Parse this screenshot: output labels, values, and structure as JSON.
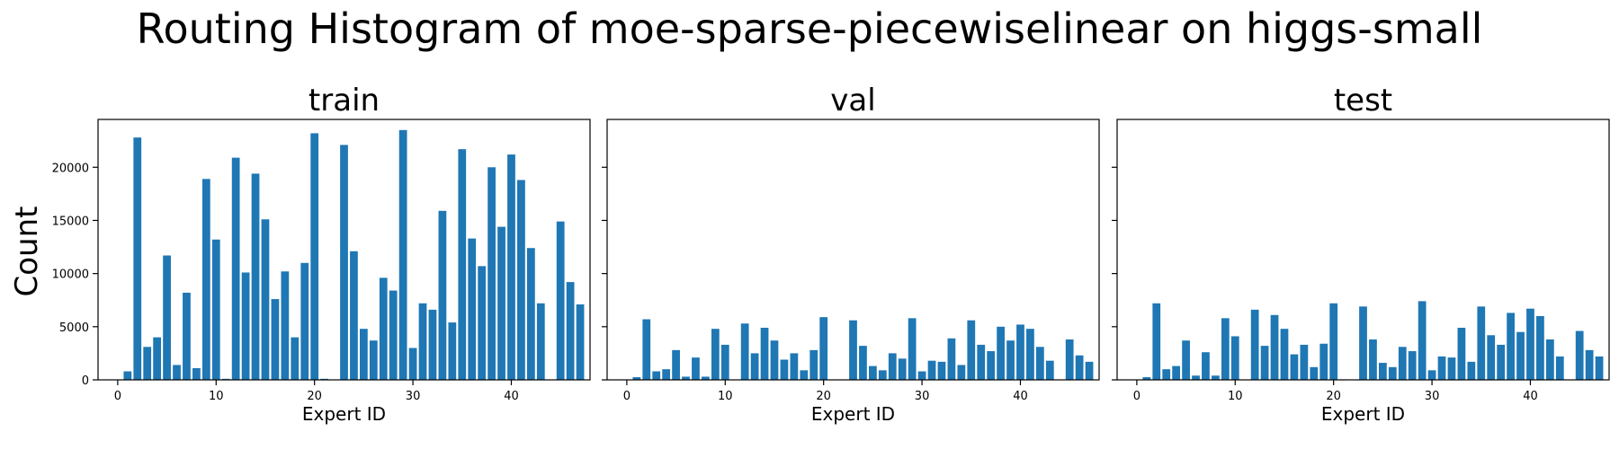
{
  "figure": {
    "title": "Routing Histogram of moe-sparse-piecewiselinear on higgs-small",
    "ylabel": "Count",
    "bar_color": "#1f77b4"
  },
  "chart_data": [
    {
      "type": "bar",
      "title": "train",
      "xlabel": "Expert ID",
      "ylabel": "Count",
      "xlim": [
        -2,
        48
      ],
      "ylim": [
        0,
        24500
      ],
      "xticks": [
        0,
        10,
        20,
        30,
        40
      ],
      "yticks": [
        0,
        5000,
        10000,
        15000,
        20000
      ],
      "ytick_labels": [
        "0",
        "5000",
        "10000",
        "15000",
        "20000"
      ],
      "categories": [
        0,
        1,
        2,
        3,
        4,
        5,
        6,
        7,
        8,
        9,
        10,
        11,
        12,
        13,
        14,
        15,
        16,
        17,
        18,
        19,
        20,
        21,
        22,
        23,
        24,
        25,
        26,
        27,
        28,
        29,
        30,
        31,
        32,
        33,
        34,
        35,
        36,
        37,
        38,
        39,
        40,
        41,
        42,
        43,
        44,
        45,
        46,
        47
      ],
      "values": [
        0,
        800,
        22800,
        3100,
        4000,
        11700,
        1400,
        8200,
        1100,
        18900,
        13200,
        100,
        20900,
        10100,
        19400,
        15100,
        7600,
        10200,
        4000,
        11000,
        23200,
        100,
        0,
        22100,
        12100,
        4800,
        3700,
        9600,
        8400,
        23500,
        3000,
        7200,
        6600,
        15900,
        5400,
        21700,
        13300,
        10700,
        20000,
        14400,
        21200,
        18800,
        12400,
        7200,
        0,
        14900,
        9200,
        7100
      ]
    },
    {
      "type": "bar",
      "title": "val",
      "xlabel": "Expert ID",
      "ylabel": "",
      "xlim": [
        -2,
        48
      ],
      "ylim": [
        0,
        24500
      ],
      "xticks": [
        0,
        10,
        20,
        30,
        40
      ],
      "yticks": [
        0,
        5000,
        10000,
        15000,
        20000
      ],
      "ytick_labels": [],
      "categories": [
        0,
        1,
        2,
        3,
        4,
        5,
        6,
        7,
        8,
        9,
        10,
        11,
        12,
        13,
        14,
        15,
        16,
        17,
        18,
        19,
        20,
        21,
        22,
        23,
        24,
        25,
        26,
        27,
        28,
        29,
        30,
        31,
        32,
        33,
        34,
        35,
        36,
        37,
        38,
        39,
        40,
        41,
        42,
        43,
        44,
        45,
        46,
        47
      ],
      "values": [
        0,
        250,
        5700,
        800,
        1000,
        2800,
        300,
        2100,
        300,
        4800,
        3300,
        0,
        5300,
        2500,
        4900,
        3700,
        1900,
        2500,
        900,
        2800,
        5900,
        0,
        0,
        5600,
        3200,
        1300,
        900,
        2500,
        2000,
        5800,
        800,
        1800,
        1700,
        3900,
        1400,
        5600,
        3300,
        2700,
        5000,
        3700,
        5200,
        4800,
        3100,
        1800,
        0,
        3800,
        2300,
        1700
      ]
    },
    {
      "type": "bar",
      "title": "test",
      "xlabel": "Expert ID",
      "ylabel": "",
      "xlim": [
        -2,
        48
      ],
      "ylim": [
        0,
        24500
      ],
      "xticks": [
        0,
        10,
        20,
        30,
        40
      ],
      "yticks": [
        0,
        5000,
        10000,
        15000,
        20000
      ],
      "ytick_labels": [],
      "categories": [
        0,
        1,
        2,
        3,
        4,
        5,
        6,
        7,
        8,
        9,
        10,
        11,
        12,
        13,
        14,
        15,
        16,
        17,
        18,
        19,
        20,
        21,
        22,
        23,
        24,
        25,
        26,
        27,
        28,
        29,
        30,
        31,
        32,
        33,
        34,
        35,
        36,
        37,
        38,
        39,
        40,
        41,
        42,
        43,
        44,
        45,
        46,
        47
      ],
      "values": [
        0,
        250,
        7200,
        1000,
        1300,
        3700,
        400,
        2600,
        400,
        5800,
        4100,
        0,
        6600,
        3200,
        6100,
        4800,
        2400,
        3300,
        1200,
        3400,
        7200,
        50,
        0,
        6900,
        3800,
        1600,
        1200,
        3100,
        2700,
        7400,
        900,
        2200,
        2100,
        4900,
        1700,
        6900,
        4200,
        3300,
        6300,
        4500,
        6700,
        6000,
        3800,
        2200,
        0,
        4600,
        2800,
        2200
      ]
    }
  ]
}
